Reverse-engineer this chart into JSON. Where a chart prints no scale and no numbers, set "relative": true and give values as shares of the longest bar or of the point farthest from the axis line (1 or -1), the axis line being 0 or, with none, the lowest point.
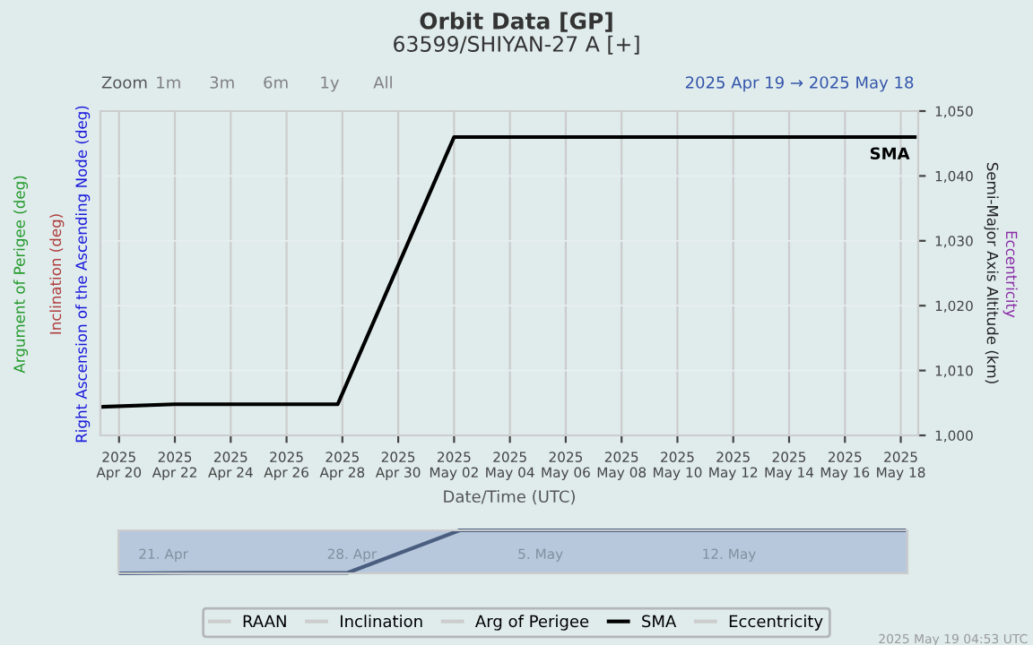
{
  "chart_data": [
    {
      "type": "line",
      "title": "Orbit Data [GP]",
      "subtitle": "63599/SHIYAN-27 A [+]",
      "xlabel": "Date/Time (UTC)",
      "ylabel": "Semi-Major Axis Altitude (km)",
      "annotations": [
        "Zoom",
        "1m",
        "3m",
        "6m",
        "1y",
        "All",
        "2025 Apr 19 → 2025 May 18",
        "Right Ascension of the Ascending Node (deg)",
        "Inclination (deg)",
        "Argument of Perigee (deg)",
        "Eccentricity",
        "2025 May 19 04:53 UTC"
      ],
      "x": [
        "2025-04-19T10:00",
        "2025-04-22T00:00",
        "2025-04-27T20:00",
        "2025-05-02T00:00",
        "2025-05-18T12:00"
      ],
      "series": [
        {
          "name": "RAAN",
          "color": "#cccccc",
          "values": [
            null,
            null,
            null,
            null,
            null
          ]
        },
        {
          "name": "Inclination",
          "color": "#cccccc",
          "values": [
            null,
            null,
            null,
            null,
            null
          ]
        },
        {
          "name": "Arg of Perigee",
          "color": "#cccccc",
          "values": [
            null,
            null,
            null,
            null,
            null
          ]
        },
        {
          "name": "SMA",
          "color": "#000000",
          "values": [
            1004.4,
            1004.8,
            1004.8,
            1046.0,
            1046.0
          ]
        },
        {
          "name": "Eccentricity",
          "color": "#cccccc",
          "values": [
            null,
            null,
            null,
            null,
            null
          ]
        }
      ],
      "xlim": [
        "2025-04-19T08:00",
        "2025-05-18T15:00"
      ],
      "xticks": [
        {
          "value": "2025-04-20",
          "label": "2025\nApr 20"
        },
        {
          "value": "2025-04-22",
          "label": "2025\nApr 22"
        },
        {
          "value": "2025-04-24",
          "label": "2025\nApr 24"
        },
        {
          "value": "2025-04-26",
          "label": "2025\nApr 26"
        },
        {
          "value": "2025-04-28",
          "label": "2025\nApr 28"
        },
        {
          "value": "2025-04-30",
          "label": "2025\nApr 30"
        },
        {
          "value": "2025-05-02",
          "label": "2025\nMay 02"
        },
        {
          "value": "2025-05-04",
          "label": "2025\nMay 04"
        },
        {
          "value": "2025-05-06",
          "label": "2025\nMay 06"
        },
        {
          "value": "2025-05-08",
          "label": "2025\nMay 08"
        },
        {
          "value": "2025-05-10",
          "label": "2025\nMay 10"
        },
        {
          "value": "2025-05-12",
          "label": "2025\nMay 12"
        },
        {
          "value": "2025-05-14",
          "label": "2025\nMay 14"
        },
        {
          "value": "2025-05-16",
          "label": "2025\nMay 16"
        },
        {
          "value": "2025-05-18",
          "label": "2025\nMay 18"
        }
      ],
      "ylim": [
        1000,
        1050
      ],
      "yticks": [
        {
          "value": 1000,
          "label": "1,000"
        },
        {
          "value": 1010,
          "label": "1,010"
        },
        {
          "value": 1020,
          "label": "1,020"
        },
        {
          "value": 1030,
          "label": "1,030"
        },
        {
          "value": 1040,
          "label": "1,040"
        },
        {
          "value": 1050,
          "label": "1,050"
        }
      ],
      "grid": true,
      "legend": "bottom",
      "marker": "none",
      "line_style": "solid"
    },
    {
      "type": "line",
      "relative": true,
      "tick_labels": "x",
      "x": [
        "2025-04-19T10:00",
        "2025-04-22T00:00",
        "2025-04-27T20:00",
        "2025-05-02T00:00",
        "2025-05-18T12:00"
      ],
      "series": [
        {
          "color": "#4a5f80",
          "values": [
            0,
            0.01,
            0.01,
            1,
            1
          ]
        }
      ],
      "xlim": [
        "2025-04-19T08:00",
        "2025-05-18T15:00"
      ],
      "xticks": [
        {
          "value": "2025-04-21",
          "label": "21. Apr"
        },
        {
          "value": "2025-04-28",
          "label": "28. Apr"
        },
        {
          "value": "2025-05-05",
          "label": "5. May"
        },
        {
          "value": "2025-05-12",
          "label": "12. May"
        }
      ]
    }
  ]
}
